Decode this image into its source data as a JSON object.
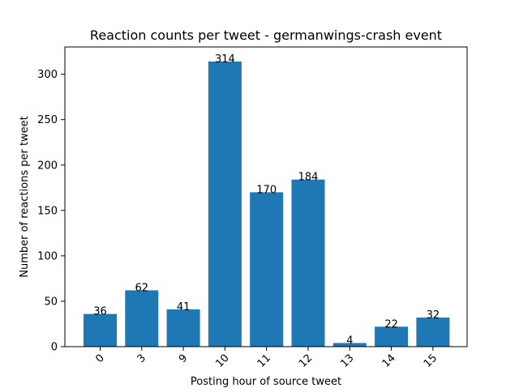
{
  "chart_data": {
    "type": "bar",
    "title": "Reaction counts per tweet - germanwings-crash event",
    "xlabel": "Posting hour of source tweet",
    "ylabel": "Number of reactions per tweet",
    "categories": [
      "0",
      "3",
      "9",
      "10",
      "11",
      "12",
      "13",
      "14",
      "15"
    ],
    "values": [
      36,
      62,
      41,
      314,
      170,
      184,
      4,
      22,
      32
    ],
    "data_labels": [
      "36",
      "62",
      "41",
      "314",
      "170",
      "184",
      "4",
      "22",
      "32"
    ],
    "ylim": [
      0,
      330
    ],
    "yticks": [
      0,
      50,
      100,
      150,
      200,
      250,
      300
    ],
    "x_tick_rotation": "45 degrees",
    "grid": false,
    "legend": "none",
    "bar_color": "#1f77b4"
  }
}
